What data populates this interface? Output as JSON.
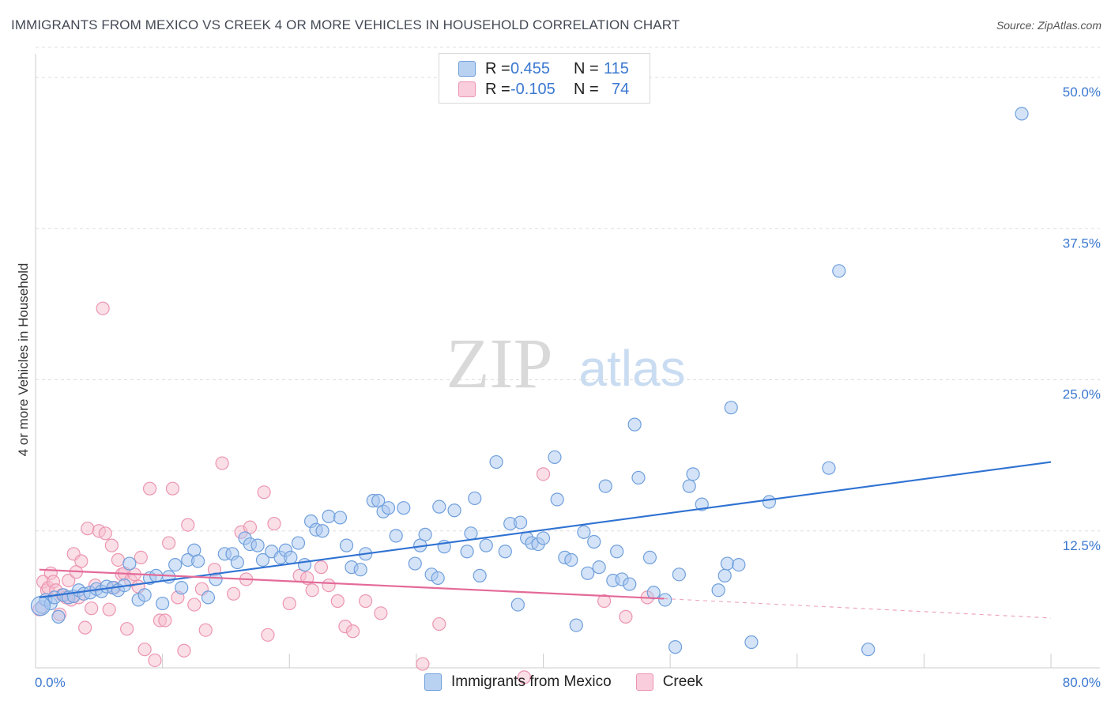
{
  "header": {
    "title": "IMMIGRANTS FROM MEXICO VS CREEK 4 OR MORE VEHICLES IN HOUSEHOLD CORRELATION CHART",
    "source": "Source: ZipAtlas.com"
  },
  "watermark": {
    "zip": "ZIP",
    "atlas": "atlas"
  },
  "legend": {
    "rows": [
      {
        "r_label": "R =",
        "r_value": "0.455",
        "n_label": "N =",
        "n_value": "115"
      },
      {
        "r_label": "R =",
        "r_value": "-0.105",
        "n_label": "N =",
        "n_value": "74"
      }
    ]
  },
  "colors": {
    "blue_fill": "#a9c8ef",
    "blue_stroke": "#6f9fdc",
    "blue_line": "#2f72d2",
    "pink_fill": "#f6bfd0",
    "pink_stroke": "#ec95b1",
    "pink_line": "#e46a98",
    "axis_tick_text": "#3b78d0",
    "grid": "#dddddd"
  },
  "chart_data": {
    "type": "scatter",
    "title": "IMMIGRANTS FROM MEXICO VS CREEK 4 OR MORE VEHICLES IN HOUSEHOLD CORRELATION CHART",
    "xlabel": "",
    "ylabel": "4 or more Vehicles in Household",
    "xlim": [
      0,
      80
    ],
    "ylim": [
      0,
      50
    ],
    "x_tick_labels": [
      "0.0%",
      "80.0%"
    ],
    "y_ticks": [
      12.5,
      25.0,
      37.5,
      50.0
    ],
    "y_tick_labels": [
      "12.5%",
      "25.0%",
      "37.5%",
      "50.0%"
    ],
    "grid": true,
    "legend_position": "top-center",
    "series": [
      {
        "name": "Immigrants from Mexico",
        "r": 0.455,
        "n": 115,
        "trend": {
          "x": [
            0.3,
            80
          ],
          "y": [
            7.0,
            18.2
          ]
        },
        "points": [
          [
            0.5,
            6.2
          ],
          [
            0.8,
            6.8
          ],
          [
            1.2,
            6.5
          ],
          [
            1.5,
            7.0
          ],
          [
            1.8,
            5.4
          ],
          [
            2.2,
            7.2
          ],
          [
            2.6,
            7.0
          ],
          [
            3.0,
            7.1
          ],
          [
            3.4,
            7.6
          ],
          [
            3.8,
            7.3
          ],
          [
            4.3,
            7.4
          ],
          [
            4.8,
            7.7
          ],
          [
            5.2,
            7.5
          ],
          [
            5.6,
            7.9
          ],
          [
            6.1,
            7.8
          ],
          [
            6.5,
            7.6
          ],
          [
            7.0,
            8.0
          ],
          [
            7.4,
            9.8
          ],
          [
            8.1,
            6.8
          ],
          [
            8.6,
            7.2
          ],
          [
            9.0,
            8.6
          ],
          [
            9.5,
            8.8
          ],
          [
            10.0,
            6.5
          ],
          [
            10.5,
            8.7
          ],
          [
            11.0,
            9.7
          ],
          [
            11.5,
            7.8
          ],
          [
            12.0,
            10.1
          ],
          [
            12.5,
            10.9
          ],
          [
            12.8,
            10.0
          ],
          [
            13.6,
            7.0
          ],
          [
            14.2,
            8.5
          ],
          [
            14.9,
            10.6
          ],
          [
            15.5,
            10.6
          ],
          [
            15.9,
            9.9
          ],
          [
            16.5,
            11.9
          ],
          [
            16.9,
            11.4
          ],
          [
            17.5,
            11.3
          ],
          [
            17.9,
            10.1
          ],
          [
            18.6,
            10.8
          ],
          [
            19.3,
            10.3
          ],
          [
            19.7,
            10.9
          ],
          [
            20.1,
            10.3
          ],
          [
            20.7,
            11.5
          ],
          [
            21.2,
            9.7
          ],
          [
            21.7,
            13.3
          ],
          [
            22.1,
            12.6
          ],
          [
            22.6,
            12.5
          ],
          [
            23.1,
            13.7
          ],
          [
            24.0,
            13.6
          ],
          [
            24.5,
            11.3
          ],
          [
            24.9,
            9.5
          ],
          [
            25.6,
            9.3
          ],
          [
            26.0,
            10.6
          ],
          [
            26.6,
            15.0
          ],
          [
            27.0,
            15.0
          ],
          [
            27.4,
            14.1
          ],
          [
            27.8,
            14.4
          ],
          [
            28.4,
            12.1
          ],
          [
            29.0,
            14.4
          ],
          [
            29.9,
            9.8
          ],
          [
            30.3,
            11.3
          ],
          [
            30.7,
            12.2
          ],
          [
            31.2,
            8.9
          ],
          [
            31.7,
            8.6
          ],
          [
            31.8,
            14.5
          ],
          [
            32.2,
            11.2
          ],
          [
            33.0,
            14.2
          ],
          [
            34.0,
            10.8
          ],
          [
            34.3,
            12.3
          ],
          [
            34.6,
            15.2
          ],
          [
            35.0,
            8.8
          ],
          [
            35.5,
            11.3
          ],
          [
            36.3,
            18.2
          ],
          [
            37.0,
            10.8
          ],
          [
            37.4,
            13.1
          ],
          [
            38.0,
            6.4
          ],
          [
            38.2,
            13.2
          ],
          [
            38.7,
            11.9
          ],
          [
            39.1,
            11.5
          ],
          [
            39.6,
            11.4
          ],
          [
            40.0,
            11.9
          ],
          [
            40.9,
            18.6
          ],
          [
            41.1,
            15.1
          ],
          [
            41.7,
            10.3
          ],
          [
            42.2,
            10.1
          ],
          [
            42.6,
            4.7
          ],
          [
            43.2,
            12.4
          ],
          [
            43.5,
            9.0
          ],
          [
            44.0,
            11.6
          ],
          [
            44.4,
            9.5
          ],
          [
            44.9,
            16.2
          ],
          [
            45.5,
            8.4
          ],
          [
            45.8,
            10.8
          ],
          [
            46.2,
            8.5
          ],
          [
            46.8,
            8.1
          ],
          [
            47.2,
            21.3
          ],
          [
            47.5,
            16.9
          ],
          [
            48.4,
            10.3
          ],
          [
            48.7,
            7.4
          ],
          [
            49.6,
            6.8
          ],
          [
            50.4,
            2.9
          ],
          [
            50.7,
            8.9
          ],
          [
            51.5,
            16.2
          ],
          [
            51.8,
            17.2
          ],
          [
            52.5,
            14.7
          ],
          [
            53.8,
            7.6
          ],
          [
            54.3,
            8.8
          ],
          [
            54.5,
            9.8
          ],
          [
            54.8,
            22.7
          ],
          [
            55.4,
            9.7
          ],
          [
            56.4,
            3.3
          ],
          [
            57.8,
            14.9
          ],
          [
            62.5,
            17.7
          ],
          [
            63.3,
            34.0
          ],
          [
            65.6,
            2.7
          ],
          [
            77.7,
            47.0
          ]
        ]
      },
      {
        "name": "Creek",
        "r": -0.105,
        "n": 74,
        "trend": {
          "x": [
            0.3,
            49.5
          ],
          "y": [
            9.3,
            6.9
          ],
          "dashed_to": {
            "x": 80,
            "y": 5.3
          }
        },
        "points": [
          [
            0.3,
            6.0
          ],
          [
            0.6,
            8.3
          ],
          [
            0.9,
            7.6
          ],
          [
            1.0,
            7.8
          ],
          [
            1.2,
            9.0
          ],
          [
            1.4,
            8.3
          ],
          [
            1.6,
            7.6
          ],
          [
            1.9,
            5.6
          ],
          [
            2.1,
            7.2
          ],
          [
            2.4,
            7.0
          ],
          [
            2.6,
            8.4
          ],
          [
            2.8,
            6.8
          ],
          [
            3.0,
            10.6
          ],
          [
            3.2,
            9.1
          ],
          [
            3.4,
            7.0
          ],
          [
            3.6,
            10.0
          ],
          [
            3.9,
            4.5
          ],
          [
            4.1,
            12.7
          ],
          [
            4.4,
            6.1
          ],
          [
            4.7,
            8.0
          ],
          [
            5.0,
            12.5
          ],
          [
            5.3,
            30.9
          ],
          [
            5.5,
            12.3
          ],
          [
            5.8,
            6.0
          ],
          [
            6.0,
            11.3
          ],
          [
            6.2,
            7.8
          ],
          [
            6.5,
            10.1
          ],
          [
            6.8,
            8.9
          ],
          [
            7.0,
            9.0
          ],
          [
            7.2,
            4.4
          ],
          [
            7.5,
            8.4
          ],
          [
            7.8,
            8.9
          ],
          [
            8.1,
            7.9
          ],
          [
            8.3,
            10.3
          ],
          [
            8.6,
            2.7
          ],
          [
            9.0,
            16.0
          ],
          [
            9.4,
            1.8
          ],
          [
            9.8,
            5.1
          ],
          [
            10.2,
            5.1
          ],
          [
            10.5,
            11.5
          ],
          [
            10.8,
            16.0
          ],
          [
            11.2,
            7.0
          ],
          [
            11.7,
            2.6
          ],
          [
            12.0,
            13.0
          ],
          [
            12.5,
            6.4
          ],
          [
            13.1,
            7.7
          ],
          [
            13.4,
            4.3
          ],
          [
            14.1,
            9.3
          ],
          [
            14.7,
            18.1
          ],
          [
            15.6,
            7.3
          ],
          [
            16.2,
            12.4
          ],
          [
            16.6,
            8.5
          ],
          [
            16.9,
            12.8
          ],
          [
            18.0,
            15.7
          ],
          [
            18.3,
            3.9
          ],
          [
            18.8,
            13.1
          ],
          [
            20.0,
            6.5
          ],
          [
            20.8,
            8.8
          ],
          [
            21.4,
            8.6
          ],
          [
            21.8,
            7.6
          ],
          [
            22.5,
            9.5
          ],
          [
            23.1,
            8.0
          ],
          [
            23.8,
            6.7
          ],
          [
            24.4,
            4.6
          ],
          [
            25.0,
            4.2
          ],
          [
            26.0,
            6.7
          ],
          [
            27.2,
            5.7
          ],
          [
            30.5,
            1.5
          ],
          [
            31.8,
            4.8
          ],
          [
            38.5,
            0.4
          ],
          [
            40.0,
            17.2
          ],
          [
            44.8,
            6.7
          ],
          [
            46.5,
            5.4
          ],
          [
            48.2,
            7.0
          ]
        ]
      }
    ]
  }
}
